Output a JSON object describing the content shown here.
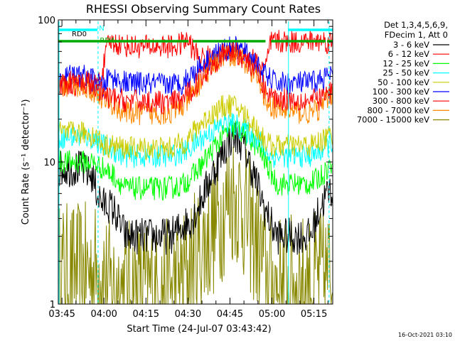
{
  "chart_data": {
    "type": "line",
    "title": "RHESSI Observing Summary Count Rates",
    "xlabel": "Start Time (24-Jul-07 03:43:42)",
    "ylabel": "Count Rate (s⁻¹ detector⁻¹)",
    "x_unit": "minutes after 03:43:42",
    "xlim": [
      0,
      98
    ],
    "ylim": [
      1,
      100
    ],
    "y_scale": "log",
    "x_ticks": [
      {
        "t": 1.3,
        "label": "03:45"
      },
      {
        "t": 16.3,
        "label": "04:00"
      },
      {
        "t": 31.3,
        "label": "04:15"
      },
      {
        "t": 46.3,
        "label": "04:30"
      },
      {
        "t": 61.3,
        "label": "04:45"
      },
      {
        "t": 76.3,
        "label": "05:00"
      },
      {
        "t": 91.3,
        "label": "05:15"
      }
    ],
    "y_tick_labels": [
      {
        "v": 1,
        "label": "1"
      },
      {
        "v": 10,
        "label": "10"
      },
      {
        "v": 100,
        "label": "100"
      }
    ],
    "legend_header": [
      "Det 1,3,4,5,6,9,",
      "FDecim 1, Att 0"
    ],
    "legend_position": "right",
    "series": [
      {
        "name": "3 - 6 keV",
        "color": "#000000",
        "x": [
          0,
          8,
          12,
          14,
          16,
          18,
          20,
          24,
          40,
          44,
          48,
          52,
          56,
          60,
          62,
          64,
          66,
          70,
          72,
          74,
          78,
          90,
          93,
          96,
          98
        ],
        "y": [
          9,
          9,
          8,
          6,
          5,
          5,
          4.5,
          3,
          3,
          3.5,
          4,
          6,
          9,
          13,
          15,
          15,
          13,
          8,
          6,
          4.5,
          3,
          3,
          4.5,
          6,
          6.5
        ]
      },
      {
        "name": "6 - 12 keV",
        "color": "#ff0000",
        "x": [
          0,
          14,
          16,
          18,
          26,
          42,
          44,
          46,
          50,
          56,
          60,
          62,
          64,
          66,
          70,
          72,
          74,
          76,
          88,
          90,
          92,
          94,
          96,
          98
        ],
        "y": [
          35,
          35,
          45,
          70,
          65,
          65,
          68,
          72,
          55,
          54,
          58,
          60,
          60,
          58,
          52,
          48,
          45,
          70,
          70,
          72,
          70,
          72,
          70,
          70
        ]
      },
      {
        "name": "12 - 25 keV",
        "color": "#00ff00",
        "x": [
          0,
          12,
          16,
          20,
          24,
          38,
          44,
          48,
          52,
          56,
          60,
          62,
          64,
          66,
          68,
          72,
          74,
          78,
          90,
          94,
          96,
          98
        ],
        "y": [
          10,
          10,
          9,
          8,
          6.5,
          6.5,
          6.8,
          8,
          10,
          13,
          16,
          17,
          17,
          16,
          15,
          12,
          10,
          7,
          7,
          8,
          9,
          10
        ]
      },
      {
        "name": "25 - 50 keV",
        "color": "#00ffff",
        "x": [
          0,
          10,
          14,
          16,
          20,
          24,
          40,
          46,
          50,
          54,
          58,
          60,
          62,
          64,
          66,
          70,
          72,
          74,
          76,
          78,
          90,
          94,
          96,
          98
        ],
        "y": [
          15,
          15,
          14,
          13,
          12,
          11,
          11,
          12,
          14,
          16,
          18,
          19,
          18.5,
          18,
          17,
          15,
          14,
          12,
          11,
          11,
          11,
          12,
          13,
          14
        ]
      },
      {
        "name": "50 - 100 keV",
        "color": "#cccc00",
        "x": [
          0,
          10,
          14,
          16,
          20,
          24,
          40,
          46,
          50,
          54,
          58,
          60,
          62,
          64,
          66,
          70,
          72,
          74,
          76,
          78,
          90,
          94,
          96,
          98
        ],
        "y": [
          16,
          16,
          15,
          13,
          13,
          12.5,
          12.5,
          14,
          18,
          21,
          24,
          25,
          25,
          24,
          22,
          18,
          16,
          14,
          13,
          13,
          13,
          14,
          15,
          16
        ]
      },
      {
        "name": "100 - 300 keV",
        "color": "#0000ff",
        "x": [
          0,
          10,
          14,
          16,
          18,
          24,
          40,
          44,
          48,
          52,
          56,
          60,
          62,
          64,
          66,
          70,
          72,
          74,
          76,
          78,
          90,
          94,
          96,
          98
        ],
        "y": [
          40,
          40,
          36,
          33,
          40,
          36,
          35,
          36,
          42,
          50,
          57,
          62,
          64,
          63,
          60,
          52,
          45,
          40,
          38,
          36,
          36,
          38,
          40,
          42
        ]
      },
      {
        "name": "300 - 800 keV",
        "color": "#ff0000",
        "x": [
          0,
          10,
          14,
          16,
          18,
          24,
          40,
          44,
          48,
          52,
          56,
          60,
          62,
          64,
          66,
          70,
          72,
          74,
          76,
          78,
          90,
          94,
          96,
          98
        ],
        "y": [
          36,
          36,
          32,
          30,
          28,
          27,
          26,
          27,
          33,
          42,
          52,
          57,
          60,
          58,
          55,
          45,
          38,
          32,
          29,
          28,
          27,
          28,
          30,
          32
        ]
      },
      {
        "name": "800 - 7000 keV",
        "color": "#ff8800",
        "x": [
          0,
          10,
          14,
          16,
          18,
          24,
          40,
          44,
          48,
          52,
          56,
          60,
          62,
          64,
          66,
          70,
          72,
          74,
          76,
          78,
          90,
          94,
          96,
          98
        ],
        "y": [
          34,
          34,
          30,
          28,
          26,
          22,
          22,
          24,
          30,
          40,
          50,
          56,
          58,
          56,
          52,
          42,
          34,
          28,
          25,
          23,
          22,
          24,
          28,
          31
        ]
      },
      {
        "name": "7000 - 15000 keV",
        "color": "#888800",
        "x": [
          0,
          16,
          18,
          40,
          44,
          48,
          52,
          56,
          60,
          62,
          64,
          66,
          70,
          72,
          74,
          76,
          90,
          96,
          98
        ],
        "y": [
          1.7,
          1.7,
          1.3,
          1.3,
          1.5,
          2,
          2.6,
          3.6,
          5,
          5.8,
          5.6,
          4.6,
          3,
          2.2,
          1.7,
          1.4,
          1.4,
          1.6,
          1.7
        ]
      }
    ],
    "flag_bars": [
      {
        "label": "",
        "name": "night",
        "color": "#00ffff",
        "segments": [
          [
            -2,
            14
          ],
          [
            82,
            98
          ]
        ]
      },
      {
        "label": "N",
        "name": "saa",
        "color": "#00aa00",
        "segments": [
          [
            -2,
            46.5
          ],
          [
            48,
            74
          ],
          [
            76,
            95.5
          ],
          [
            96,
            98
          ]
        ]
      }
    ],
    "flag_labels": [
      {
        "text": "RD0",
        "t": 7.5,
        "color": "#000000"
      },
      {
        "text": "N",
        "t": 15.5,
        "color": "#00ffff"
      },
      {
        "text": "RD4",
        "t": 17.5,
        "color": "#00aa00"
      }
    ],
    "vertical_markers": [
      {
        "t": -0.5,
        "color": "#00ffff",
        "style": "solid"
      },
      {
        "t": 14.2,
        "color": "#00ffff",
        "style": "dashed"
      },
      {
        "t": 82.2,
        "color": "#00ffff",
        "style": "solid"
      },
      {
        "t": 96.7,
        "color": "#00ffff",
        "style": "dashed"
      }
    ],
    "colors": {
      "axes": "#000000",
      "background": "#ffffff"
    }
  },
  "footer": {
    "timestamp": "16-Oct-2021 03:10"
  }
}
